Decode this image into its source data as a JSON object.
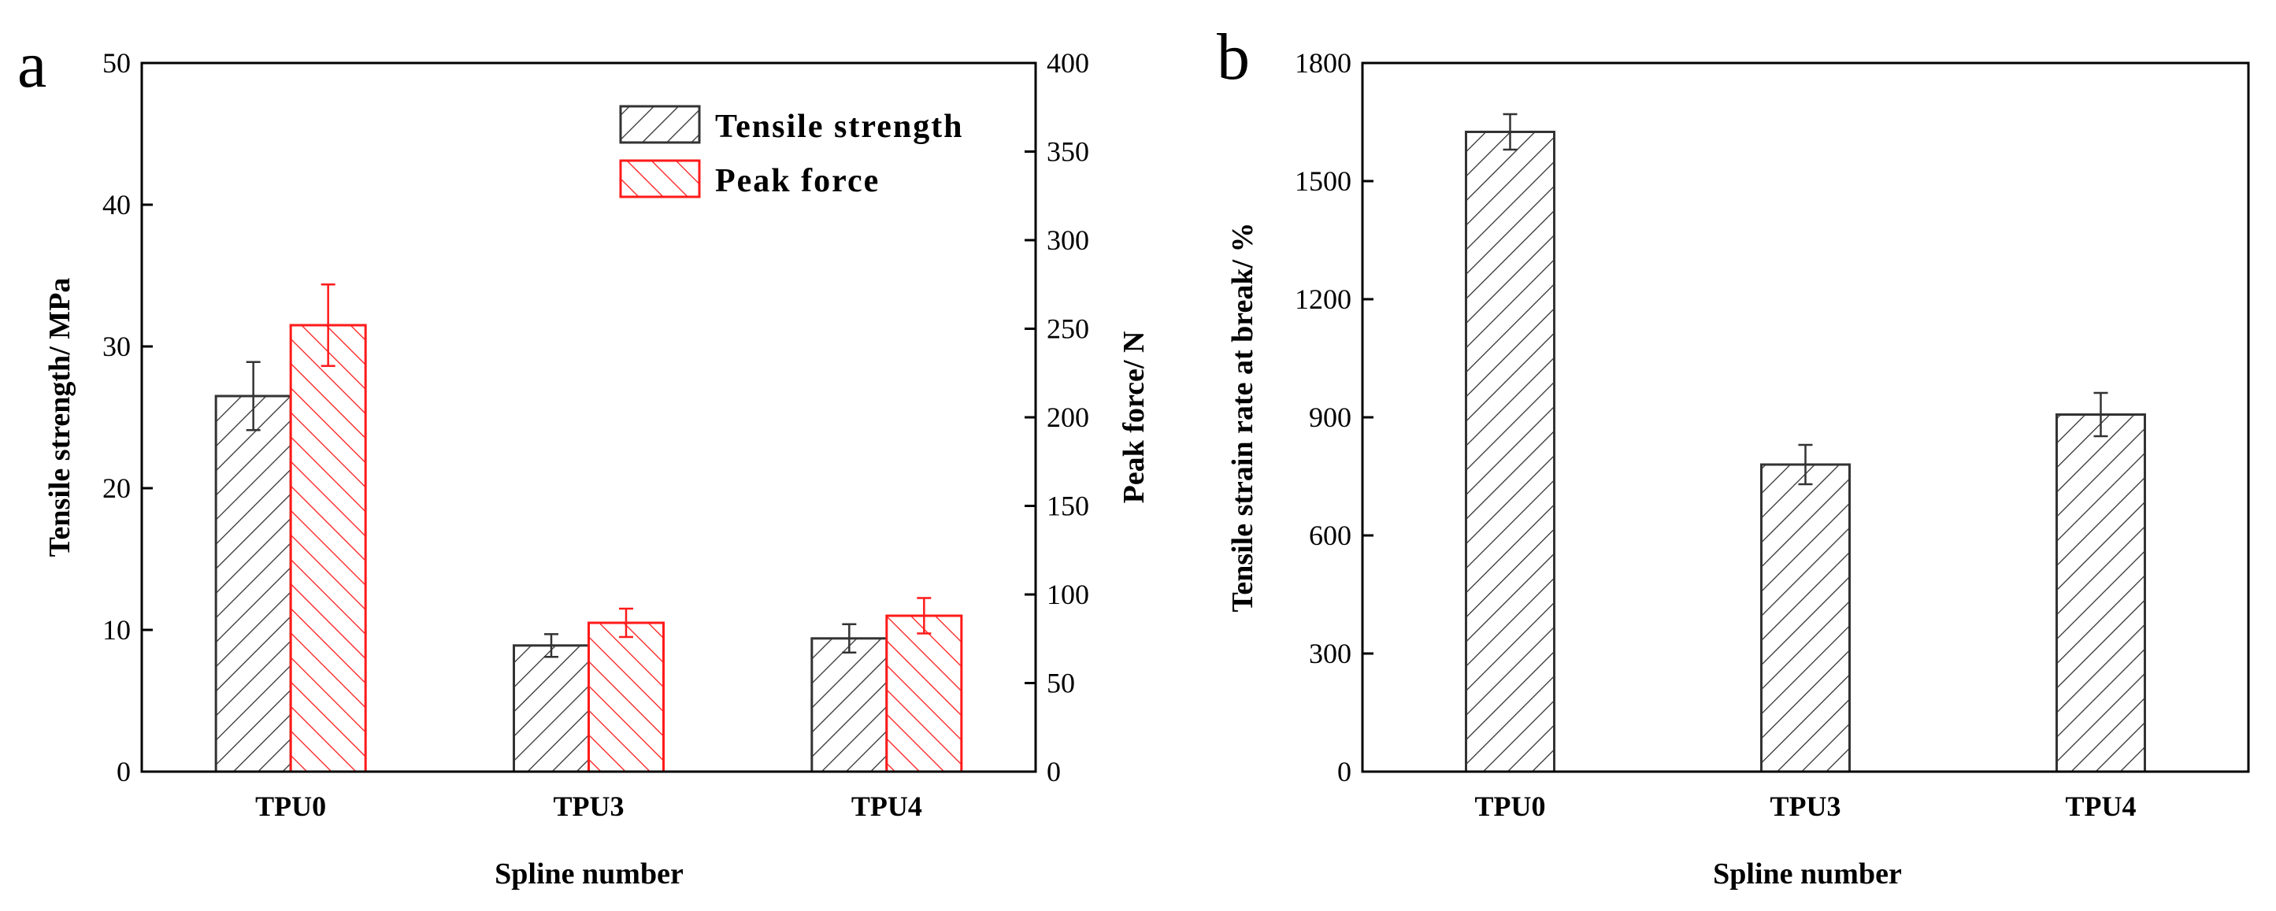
{
  "chart_data": [
    {
      "panel": "a",
      "type": "bar",
      "title": "",
      "xlabel": "Spline number",
      "ylabel": "Tensile strength/ MPa",
      "ylabel_right": "Peak force/ N",
      "categories": [
        "TPU0",
        "TPU3",
        "TPU4"
      ],
      "ylim": [
        0,
        50
      ],
      "ylim_right": [
        0,
        400
      ],
      "yticks": [
        "0",
        "10",
        "20",
        "30",
        "40",
        "50"
      ],
      "yticks_right": [
        "0",
        "50",
        "100",
        "150",
        "200",
        "250",
        "300",
        "350",
        "400"
      ],
      "legend_position": "top-right",
      "series": [
        {
          "name": "Tensile strength",
          "axis": "left",
          "color": "#333333",
          "values": [
            26.5,
            8.9,
            9.4
          ],
          "errors": [
            2.4,
            0.8,
            1.0
          ]
        },
        {
          "name": "Peak force",
          "axis": "right",
          "color": "#ff1a1a",
          "values": [
            252,
            84,
            88
          ],
          "errors": [
            23,
            8,
            10
          ]
        }
      ]
    },
    {
      "panel": "b",
      "type": "bar",
      "title": "",
      "xlabel": "Spline number",
      "ylabel": "Tensile strain rate at break/ %",
      "categories": [
        "TPU0",
        "TPU3",
        "TPU4"
      ],
      "ylim": [
        0,
        1800
      ],
      "yticks": [
        "0",
        "300",
        "600",
        "900",
        "1200",
        "1500",
        "1800"
      ],
      "series": [
        {
          "name": "Tensile strain rate at break",
          "axis": "left",
          "color": "#333333",
          "values": [
            1625,
            780,
            907
          ],
          "errors": [
            45,
            50,
            55
          ]
        }
      ]
    }
  ]
}
